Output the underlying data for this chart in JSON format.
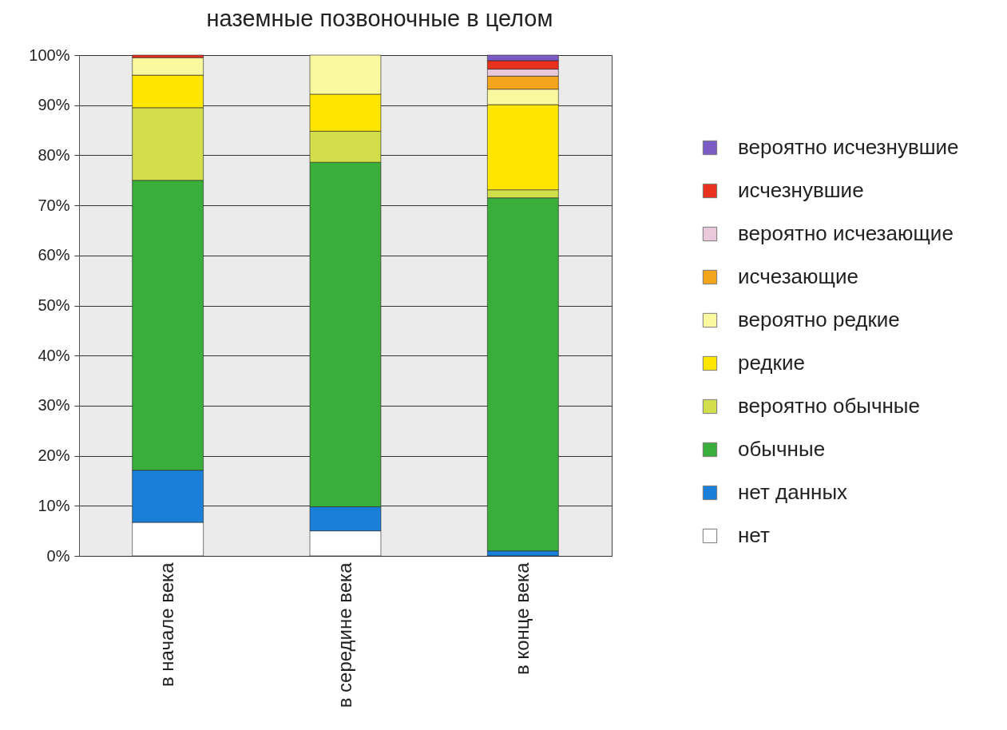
{
  "chart_data": {
    "type": "bar",
    "title": "наземные позвоночные в целом",
    "categories": [
      "в начале века",
      "в середине века",
      "в конце века"
    ],
    "stacked": true,
    "ylim": [
      0,
      100
    ],
    "yticks": [
      {
        "value": 0,
        "label": "0%"
      },
      {
        "value": 10,
        "label": "10%"
      },
      {
        "value": 20,
        "label": "20%"
      },
      {
        "value": 30,
        "label": "30%"
      },
      {
        "value": 40,
        "label": "40%"
      },
      {
        "value": 50,
        "label": "50%"
      },
      {
        "value": 60,
        "label": "60%"
      },
      {
        "value": 70,
        "label": "70%"
      },
      {
        "value": 80,
        "label": "80%"
      },
      {
        "value": 90,
        "label": "90%"
      },
      {
        "value": 100,
        "label": "100%"
      }
    ],
    "grid": "y",
    "legend": "right",
    "series": [
      {
        "name": "нет",
        "color": "#ffffff",
        "values": [
          6.7,
          5.0,
          null
        ]
      },
      {
        "name": "нет данных",
        "color": "#1a7fd8",
        "values": [
          10.4,
          4.8,
          1.0
        ]
      },
      {
        "name": "обычные",
        "color": "#3aae3a",
        "values": [
          57.9,
          68.8,
          70.5
        ]
      },
      {
        "name": "вероятно обычные",
        "color": "#d2df4a",
        "values": [
          14.5,
          6.2,
          1.6
        ]
      },
      {
        "name": "редкие",
        "color": "#ffe600",
        "values": [
          6.5,
          7.4,
          17.0
        ]
      },
      {
        "name": "вероятно редкие",
        "color": "#fbf9a0",
        "values": [
          3.5,
          7.8,
          3.1
        ]
      },
      {
        "name": "исчезающие",
        "color": "#f4a51c",
        "values": [
          null,
          null,
          2.6
        ]
      },
      {
        "name": "вероятно исчезающие",
        "color": "#ebc9dc",
        "values": [
          null,
          null,
          1.4
        ]
      },
      {
        "name": "исчезнувшие",
        "color": "#e8321e",
        "values": [
          0.5,
          null,
          1.7
        ]
      },
      {
        "name": "вероятно исчезнувшие",
        "color": "#7a5cc4",
        "values": [
          null,
          null,
          1.1
        ]
      }
    ]
  }
}
